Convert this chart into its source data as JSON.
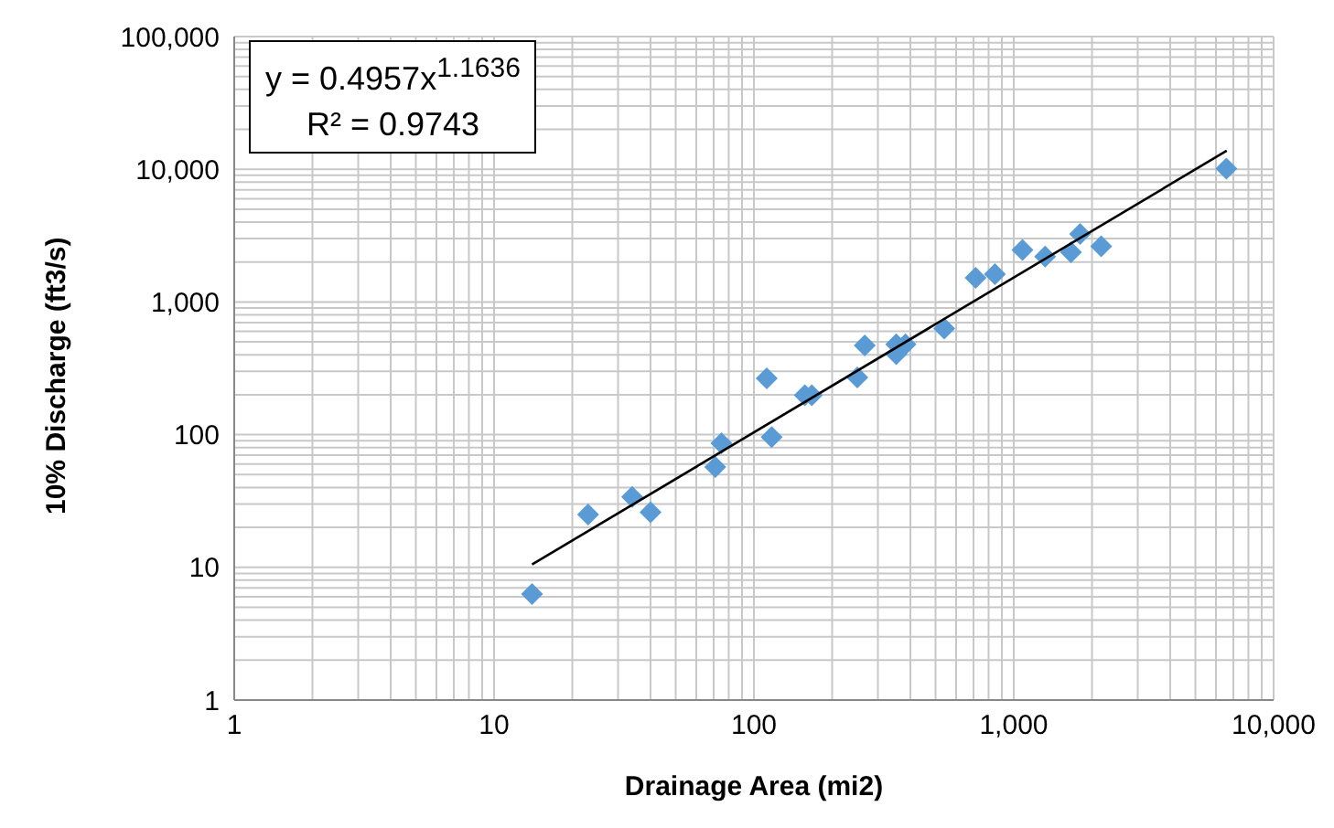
{
  "chart_data": {
    "type": "scatter",
    "xlabel": "Drainage Area (mi2)",
    "ylabel": "10% Discharge (ft3/s)",
    "log": "xy",
    "grid": true,
    "annotations": [
      "y = 0.4957x$^{1.1636}$",
      "R² = 0.9743"
    ],
    "xlim": [
      1,
      10000
    ],
    "ylim": [
      1,
      100000
    ],
    "xticks": [
      1,
      {
        "value": 2,
        "label": null
      },
      {
        "value": 3,
        "label": null
      },
      {
        "value": 4,
        "label": null
      },
      {
        "value": 5,
        "label": null
      },
      {
        "value": 6,
        "label": null
      },
      {
        "value": 7,
        "label": null
      },
      {
        "value": 8,
        "label": null
      },
      {
        "value": 9,
        "label": null
      },
      10,
      {
        "value": 20,
        "label": null
      },
      {
        "value": 30,
        "label": null
      },
      {
        "value": 40,
        "label": null
      },
      {
        "value": 50,
        "label": null
      },
      {
        "value": 60,
        "label": null
      },
      {
        "value": 70,
        "label": null
      },
      {
        "value": 80,
        "label": null
      },
      {
        "value": 90,
        "label": null
      },
      100,
      {
        "value": 200,
        "label": null
      },
      {
        "value": 300,
        "label": null
      },
      {
        "value": 400,
        "label": null
      },
      {
        "value": 500,
        "label": null
      },
      {
        "value": 600,
        "label": null
      },
      {
        "value": 700,
        "label": null
      },
      {
        "value": 800,
        "label": null
      },
      {
        "value": 900,
        "label": null
      },
      {
        "value": 1000,
        "label": "1,000"
      },
      {
        "value": 2000,
        "label": null
      },
      {
        "value": 3000,
        "label": null
      },
      {
        "value": 4000,
        "label": null
      },
      {
        "value": 5000,
        "label": null
      },
      {
        "value": 6000,
        "label": null
      },
      {
        "value": 7000,
        "label": null
      },
      {
        "value": 8000,
        "label": null
      },
      {
        "value": 9000,
        "label": null
      },
      {
        "value": 10000,
        "label": "10,000"
      }
    ],
    "yticks": [
      1,
      {
        "value": 2,
        "label": null
      },
      {
        "value": 3,
        "label": null
      },
      {
        "value": 4,
        "label": null
      },
      {
        "value": 5,
        "label": null
      },
      {
        "value": 6,
        "label": null
      },
      {
        "value": 7,
        "label": null
      },
      {
        "value": 8,
        "label": null
      },
      {
        "value": 9,
        "label": null
      },
      10,
      {
        "value": 20,
        "label": null
      },
      {
        "value": 30,
        "label": null
      },
      {
        "value": 40,
        "label": null
      },
      {
        "value": 50,
        "label": null
      },
      {
        "value": 60,
        "label": null
      },
      {
        "value": 70,
        "label": null
      },
      {
        "value": 80,
        "label": null
      },
      {
        "value": 90,
        "label": null
      },
      100,
      {
        "value": 200,
        "label": null
      },
      {
        "value": 300,
        "label": null
      },
      {
        "value": 400,
        "label": null
      },
      {
        "value": 500,
        "label": null
      },
      {
        "value": 600,
        "label": null
      },
      {
        "value": 700,
        "label": null
      },
      {
        "value": 800,
        "label": null
      },
      {
        "value": 900,
        "label": null
      },
      {
        "value": 1000,
        "label": "1,000"
      },
      {
        "value": 2000,
        "label": null
      },
      {
        "value": 3000,
        "label": null
      },
      {
        "value": 4000,
        "label": null
      },
      {
        "value": 5000,
        "label": null
      },
      {
        "value": 6000,
        "label": null
      },
      {
        "value": 7000,
        "label": null
      },
      {
        "value": 8000,
        "label": null
      },
      {
        "value": 9000,
        "label": null
      },
      {
        "value": 10000,
        "label": "10,000"
      },
      {
        "value": 20000,
        "label": null
      },
      {
        "value": 30000,
        "label": null
      },
      {
        "value": 40000,
        "label": null
      },
      {
        "value": 50000,
        "label": null
      },
      {
        "value": 60000,
        "label": null
      },
      {
        "value": 70000,
        "label": null
      },
      {
        "value": 80000,
        "label": null
      },
      {
        "value": 90000,
        "label": null
      },
      {
        "value": 100000,
        "label": "100,000"
      }
    ],
    "series": [
      {
        "marker": "diamond",
        "color": "#5b9bd5",
        "x": [
          14,
          23,
          34,
          40,
          71,
          75,
          112,
          117,
          157,
          167,
          250,
          267,
          353,
          353,
          383,
          540,
          713,
          846,
          1080,
          1320,
          1660,
          1800,
          2170,
          6580
        ],
        "values": [
          6.3,
          25,
          34,
          26,
          57,
          86,
          266,
          96,
          198,
          198,
          270,
          470,
          480,
          405,
          480,
          630,
          1520,
          1620,
          2470,
          2200,
          2370,
          3250,
          2630,
          10100
        ]
      },
      {
        "type": "line",
        "marker": "none",
        "color": "#000000",
        "x": [
          14,
          6600
        ],
        "values": [
          10.5,
          13800
        ]
      }
    ]
  }
}
